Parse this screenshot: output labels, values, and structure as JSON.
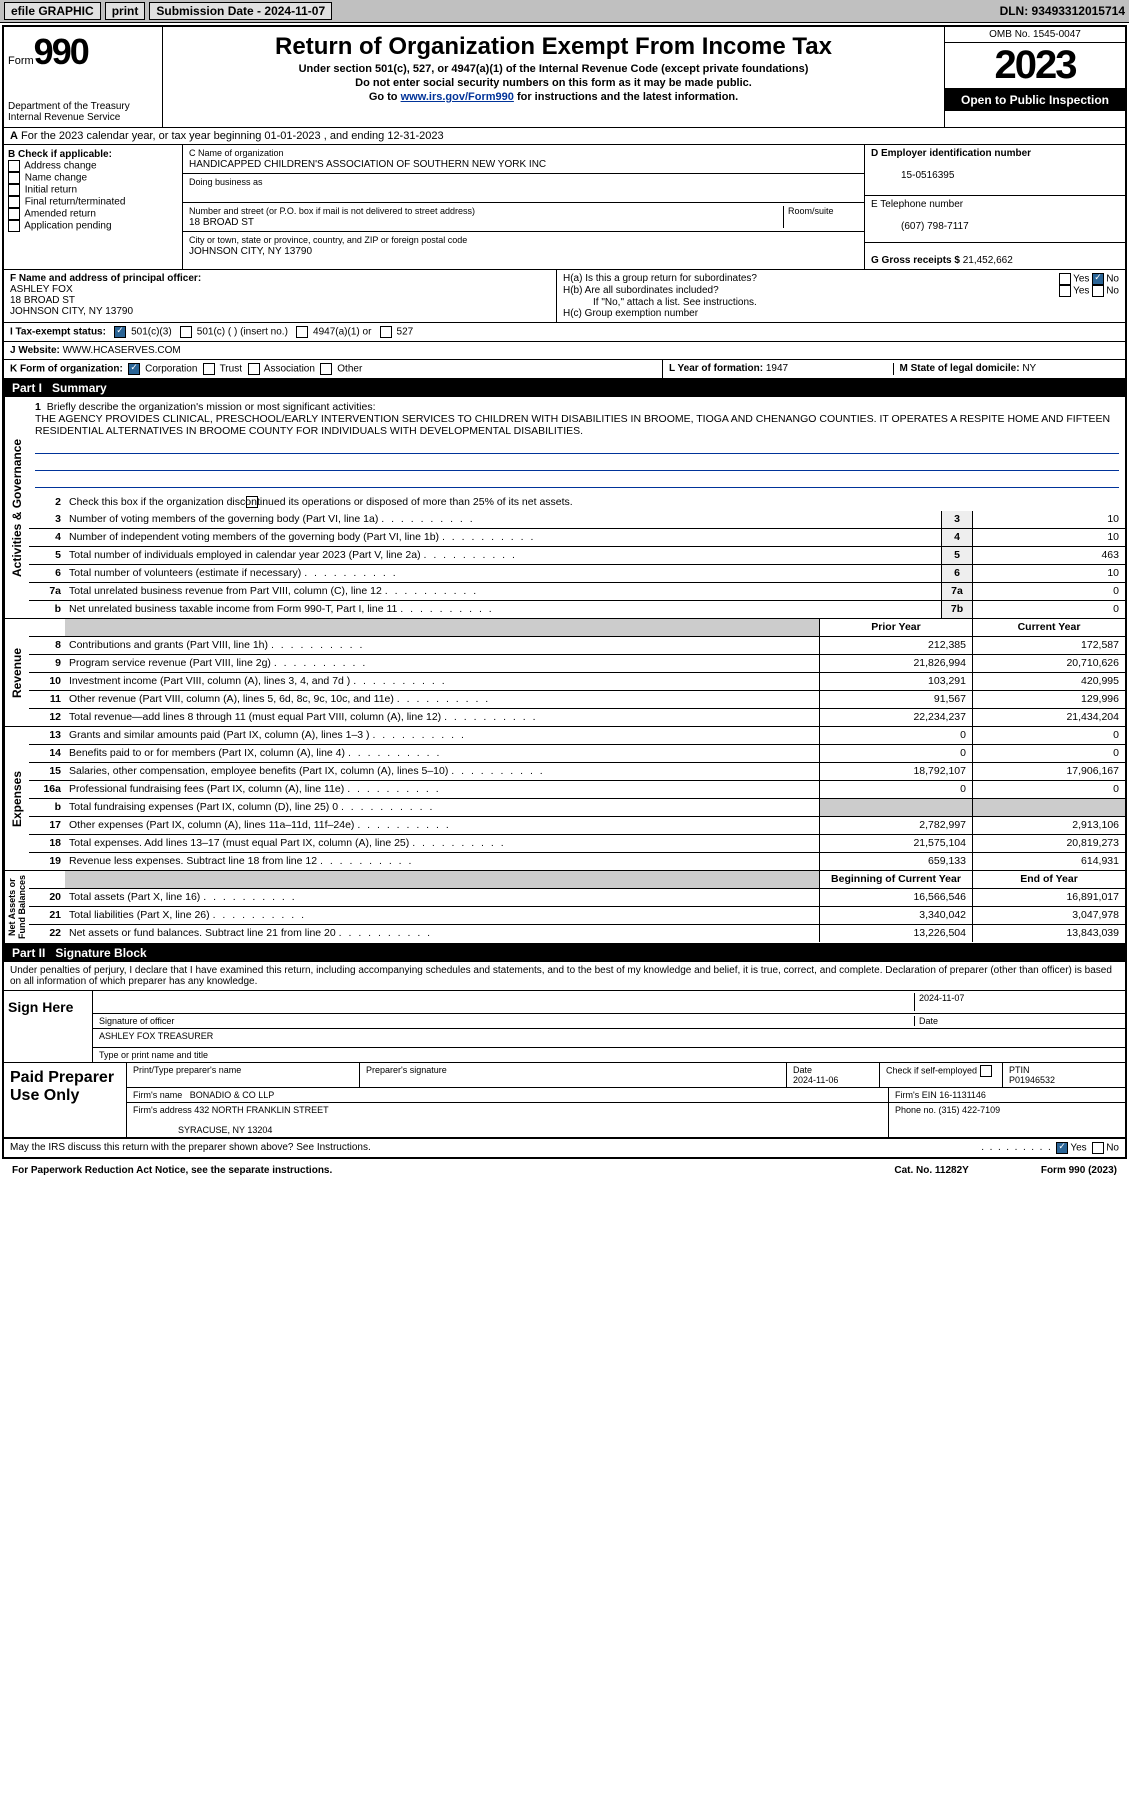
{
  "topbar": {
    "efile": "efile GRAPHIC",
    "print": "print",
    "subdate_label": "Submission Date - ",
    "subdate": "2024-11-07",
    "dln": "DLN: 93493312015714"
  },
  "header": {
    "form": "Form",
    "num": "990",
    "dept": "Department of the Treasury\nInternal Revenue Service",
    "title": "Return of Organization Exempt From Income Tax",
    "sub1": "Under section 501(c), 527, or 4947(a)(1) of the Internal Revenue Code (except private foundations)",
    "sub2": "Do not enter social security numbers on this form as it may be made public.",
    "sub3_pre": "Go to ",
    "sub3_link": "www.irs.gov/Form990",
    "sub3_post": " for instructions and the latest information.",
    "omb": "OMB No. 1545-0047",
    "year": "2023",
    "open": "Open to Public Inspection"
  },
  "rowA": "For the 2023 calendar year, or tax year beginning 01-01-2023   , and ending 12-31-2023",
  "sectionB": {
    "label": "B Check if applicable:",
    "items": [
      "Address change",
      "Name change",
      "Initial return",
      "Final return/terminated",
      "Amended return",
      "Application pending"
    ]
  },
  "sectionC": {
    "name_label": "C Name of organization",
    "name": "HANDICAPPED CHILDREN'S ASSOCIATION OF SOUTHERN NEW YORK INC",
    "dba_label": "Doing business as",
    "dba": "",
    "street_label": "Number and street (or P.O. box if mail is not delivered to street address)",
    "room_label": "Room/suite",
    "street": "18 BROAD ST",
    "city_label": "City or town, state or province, country, and ZIP or foreign postal code",
    "city": "JOHNSON CITY, NY  13790"
  },
  "sectionD": {
    "label": "D Employer identification number",
    "ein": "15-0516395"
  },
  "sectionE": {
    "label": "E Telephone number",
    "phone": "(607) 798-7117"
  },
  "sectionG": {
    "label": "G Gross receipts $ ",
    "amount": "21,452,662"
  },
  "sectionF": {
    "label": "F  Name and address of principal officer:",
    "name": "ASHLEY FOX",
    "street": "18 BROAD ST",
    "city": "JOHNSON CITY, NY  13790"
  },
  "sectionH": {
    "a": "H(a)  Is this a group return for subordinates?",
    "b": "H(b)  Are all subordinates included?",
    "b_note": "If \"No,\" attach a list. See instructions.",
    "c": "H(c)  Group exemption number "
  },
  "rowI": {
    "label": "I   Tax-exempt status:",
    "opts": [
      "501(c)(3)",
      "501(c) (  ) (insert no.)",
      "4947(a)(1) or",
      "527"
    ]
  },
  "rowJ": {
    "label": "J   Website: ",
    "val": "WWW.HCASERVES.COM"
  },
  "rowK": {
    "label": "K Form of organization:",
    "opts": [
      "Corporation",
      "Trust",
      "Association",
      "Other"
    ]
  },
  "rowL": {
    "label": "L Year of formation: ",
    "val": "1947"
  },
  "rowM": {
    "label": "M State of legal domicile: ",
    "val": "NY"
  },
  "part1": {
    "label": "Part I",
    "title": "Summary",
    "q1_label": "Briefly describe the organization's mission or most significant activities:",
    "q1": "THE AGENCY PROVIDES CLINICAL, PRESCHOOL/EARLY INTERVENTION SERVICES TO CHILDREN WITH DISABILITIES IN BROOME, TIOGA AND CHENANGO COUNTIES. IT OPERATES A RESPITE HOME AND FIFTEEN RESIDENTIAL ALTERNATIVES IN BROOME COUNTY FOR INDIVIDUALS WITH DEVELOPMENTAL DISABILITIES.",
    "q2": "Check this box      if the organization discontinued its operations or disposed of more than 25% of its net assets.",
    "rows_gov": [
      {
        "n": "3",
        "label": "Number of voting members of the governing body (Part VI, line 1a)",
        "box": "3",
        "val": "10"
      },
      {
        "n": "4",
        "label": "Number of independent voting members of the governing body (Part VI, line 1b)",
        "box": "4",
        "val": "10"
      },
      {
        "n": "5",
        "label": "Total number of individuals employed in calendar year 2023 (Part V, line 2a)",
        "box": "5",
        "val": "463"
      },
      {
        "n": "6",
        "label": "Total number of volunteers (estimate if necessary)",
        "box": "6",
        "val": "10"
      },
      {
        "n": "7a",
        "label": "Total unrelated business revenue from Part VIII, column (C), line 12",
        "box": "7a",
        "val": "0"
      },
      {
        "n": "b",
        "label": "Net unrelated business taxable income from Form 990-T, Part I, line 11",
        "box": "7b",
        "val": "0"
      }
    ],
    "col_head_prior": "Prior Year",
    "col_head_current": "Current Year",
    "rows_rev": [
      {
        "n": "8",
        "label": "Contributions and grants (Part VIII, line 1h)",
        "prior": "212,385",
        "cur": "172,587"
      },
      {
        "n": "9",
        "label": "Program service revenue (Part VIII, line 2g)",
        "prior": "21,826,994",
        "cur": "20,710,626"
      },
      {
        "n": "10",
        "label": "Investment income (Part VIII, column (A), lines 3, 4, and 7d )",
        "prior": "103,291",
        "cur": "420,995"
      },
      {
        "n": "11",
        "label": "Other revenue (Part VIII, column (A), lines 5, 6d, 8c, 9c, 10c, and 11e)",
        "prior": "91,567",
        "cur": "129,996"
      },
      {
        "n": "12",
        "label": "Total revenue—add lines 8 through 11 (must equal Part VIII, column (A), line 12)",
        "prior": "22,234,237",
        "cur": "21,434,204"
      }
    ],
    "rows_exp": [
      {
        "n": "13",
        "label": "Grants and similar amounts paid (Part IX, column (A), lines 1–3 )",
        "prior": "0",
        "cur": "0"
      },
      {
        "n": "14",
        "label": "Benefits paid to or for members (Part IX, column (A), line 4)",
        "prior": "0",
        "cur": "0"
      },
      {
        "n": "15",
        "label": "Salaries, other compensation, employee benefits (Part IX, column (A), lines 5–10)",
        "prior": "18,792,107",
        "cur": "17,906,167"
      },
      {
        "n": "16a",
        "label": "Professional fundraising fees (Part IX, column (A), line 11e)",
        "prior": "0",
        "cur": "0"
      },
      {
        "n": "b",
        "label": "Total fundraising expenses (Part IX, column (D), line 25) 0",
        "prior": "",
        "cur": "",
        "shade": true
      },
      {
        "n": "17",
        "label": "Other expenses (Part IX, column (A), lines 11a–11d, 11f–24e)",
        "prior": "2,782,997",
        "cur": "2,913,106"
      },
      {
        "n": "18",
        "label": "Total expenses. Add lines 13–17 (must equal Part IX, column (A), line 25)",
        "prior": "21,575,104",
        "cur": "20,819,273"
      },
      {
        "n": "19",
        "label": "Revenue less expenses. Subtract line 18 from line 12",
        "prior": "659,133",
        "cur": "614,931"
      }
    ],
    "col_head_begin": "Beginning of Current Year",
    "col_head_end": "End of Year",
    "rows_net": [
      {
        "n": "20",
        "label": "Total assets (Part X, line 16)",
        "prior": "16,566,546",
        "cur": "16,891,017"
      },
      {
        "n": "21",
        "label": "Total liabilities (Part X, line 26)",
        "prior": "3,340,042",
        "cur": "3,047,978"
      },
      {
        "n": "22",
        "label": "Net assets or fund balances. Subtract line 21 from line 20",
        "prior": "13,226,504",
        "cur": "13,843,039"
      }
    ]
  },
  "part2": {
    "label": "Part II",
    "title": "Signature Block",
    "perjury": "Under penalties of perjury, I declare that I have examined this return, including accompanying schedules and statements, and to the best of my knowledge and belief, it is true, correct, and complete. Declaration of preparer (other than officer) is based on all information of which preparer has any knowledge.",
    "sign_here": "Sign Here",
    "sig_officer": "Signature of officer",
    "date_label": "Date",
    "date": "2024-11-07",
    "officer_name": "ASHLEY FOX  TREASURER",
    "type_name": "Type or print name and title",
    "paid_prep": "Paid Preparer Use Only",
    "prep_name_label": "Print/Type preparer's name",
    "prep_sig_label": "Preparer's signature",
    "prep_date": "2024-11-06",
    "check_self": "Check        if self-employed",
    "ptin_label": "PTIN",
    "ptin": "P01946532",
    "firm_name_label": "Firm's name   ",
    "firm_name": "BONADIO & CO LLP",
    "firm_ein_label": "Firm's EIN  ",
    "firm_ein": "16-1131146",
    "firm_addr_label": "Firm's address ",
    "firm_addr1": "432 NORTH FRANKLIN STREET",
    "firm_addr2": "SYRACUSE, NY  13204",
    "phone_label": "Phone no. ",
    "phone": "(315) 422-7109",
    "discuss": "May the IRS discuss this return with the preparer shown above? See Instructions.",
    "yes": "Yes",
    "no": "No"
  },
  "footer": {
    "pra": "For Paperwork Reduction Act Notice, see the separate instructions.",
    "cat": "Cat. No. 11282Y",
    "form": "Form 990 (2023)"
  }
}
